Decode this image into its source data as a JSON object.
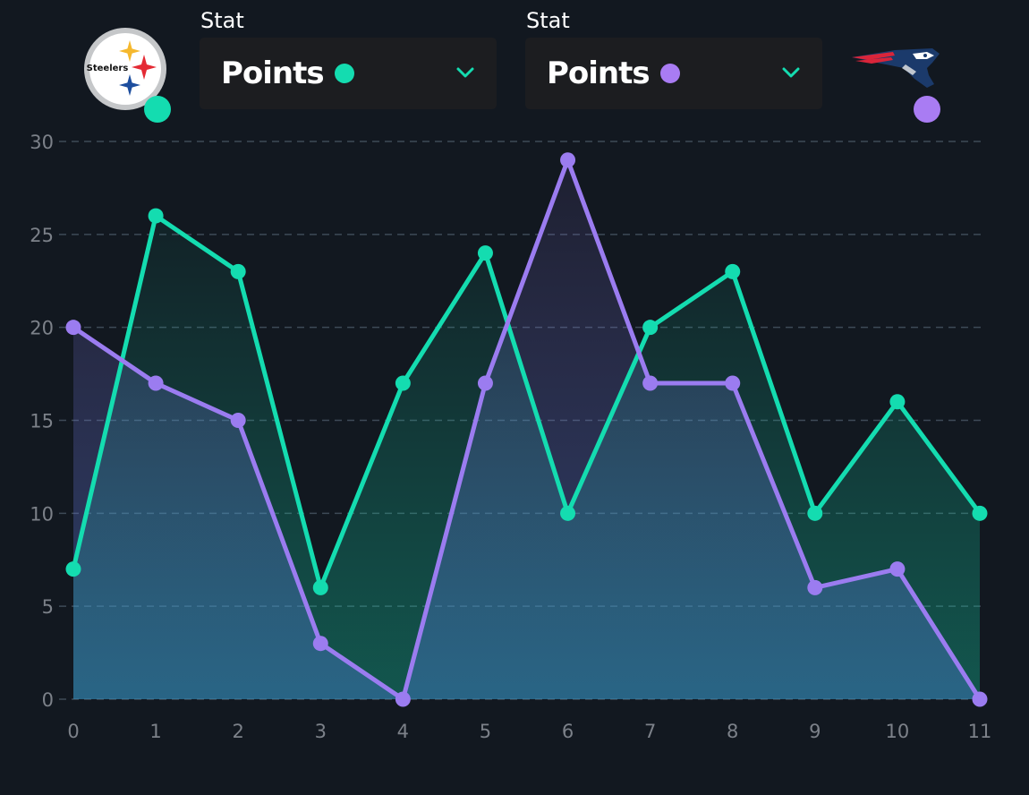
{
  "colors": {
    "background": "#121820",
    "team1": "#14dcb0",
    "team2": "#9b7cf0",
    "grid": "#3e4a57",
    "tick": "#7c8189"
  },
  "team1": {
    "logo_text": "Steelers",
    "dot_color": "#14dcb0"
  },
  "team2": {
    "dot_color": "#a97cf3"
  },
  "selectors": [
    {
      "label": "Stat",
      "value": "Points",
      "dot_color": "#14dcb0",
      "icon": "chevron-down-icon"
    },
    {
      "label": "Stat",
      "value": "Points",
      "dot_color": "#a97cf3",
      "icon": "chevron-down-icon"
    }
  ],
  "chart_data": {
    "type": "line",
    "x": [
      0,
      1,
      2,
      3,
      4,
      5,
      6,
      7,
      8,
      9,
      10,
      11
    ],
    "series": [
      {
        "values": [
          7,
          26,
          23,
          6,
          17,
          24,
          10,
          20,
          23,
          10,
          16,
          10
        ],
        "color": "#14dcb0",
        "fill": "area"
      },
      {
        "values": [
          20,
          17,
          15,
          3,
          0,
          17,
          29,
          17,
          17,
          6,
          7,
          0
        ],
        "color": "#9b7cf0",
        "fill": "area"
      }
    ],
    "xlim": [
      0,
      11
    ],
    "ylim": [
      0,
      30
    ],
    "y_ticks": [
      0,
      5,
      10,
      15,
      20,
      25,
      30
    ],
    "x_ticks": [
      0,
      1,
      2,
      3,
      4,
      5,
      6,
      7,
      8,
      9,
      10,
      11
    ],
    "grid": "horizontal-dashed",
    "legend": "none"
  }
}
